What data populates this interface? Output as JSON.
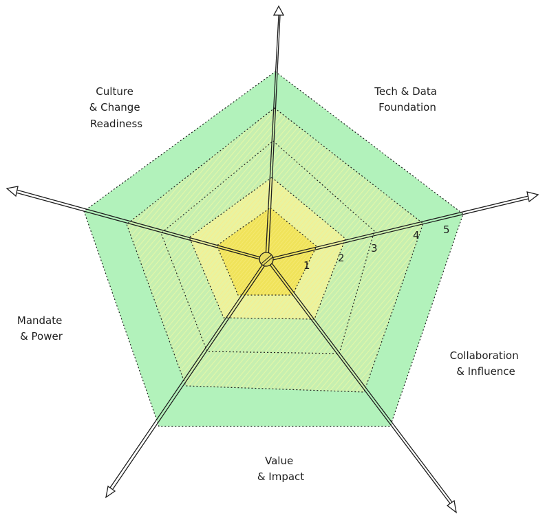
{
  "diagram": {
    "type": "radar-maturity-scale",
    "scale_labels": [
      "1",
      "2",
      "3",
      "4",
      "5"
    ],
    "axes": [
      {
        "lines": [
          "Tech & Data",
          "Foundation"
        ]
      },
      {
        "lines": [
          "Collaboration",
          "& Influence"
        ]
      },
      {
        "lines": [
          "Value",
          "& Impact"
        ]
      },
      {
        "lines": [
          "Mandate",
          "& Power"
        ]
      },
      {
        "lines": [
          "Culture",
          "& Change",
          "Readiness"
        ]
      }
    ],
    "colors": {
      "outer_fill": "#b2f2bb",
      "mid_fill": "#d8f5a2",
      "inner_fill": "#ffec99",
      "core_fill": "#f2e55c",
      "line": "#1e1e1e"
    }
  }
}
